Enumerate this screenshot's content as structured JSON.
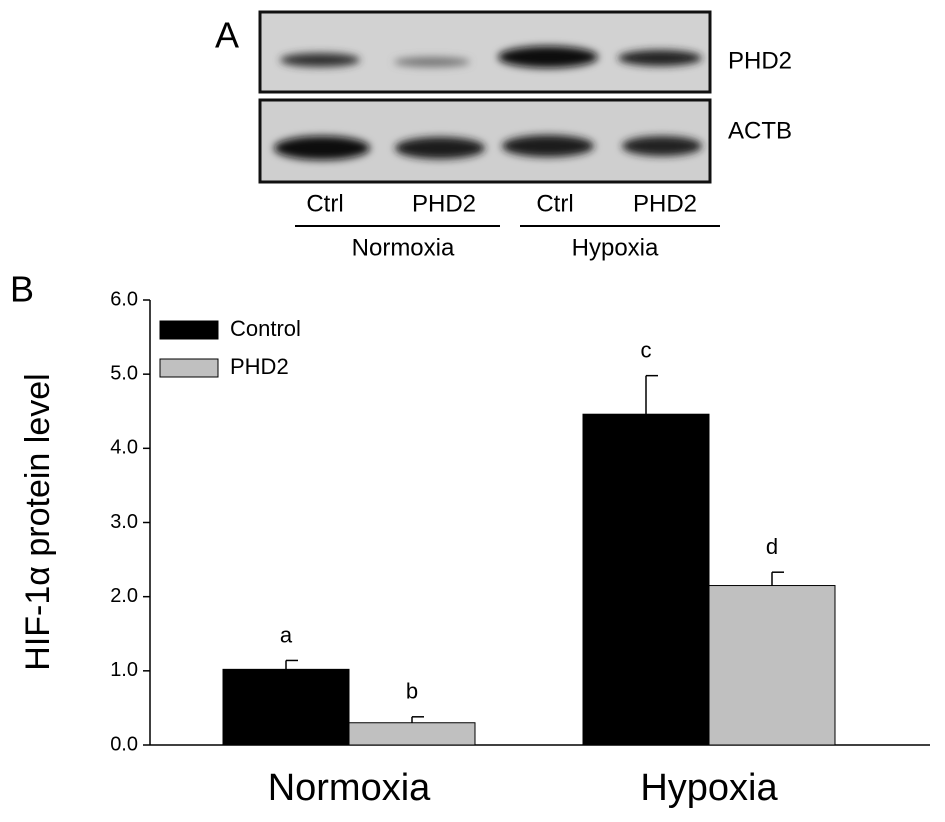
{
  "panel_a": {
    "label": "A",
    "rows": [
      "PHD2",
      "ACTB"
    ],
    "lanes": [
      "Ctrl",
      "PHD2",
      "Ctrl",
      "PHD2"
    ],
    "groups": [
      "Normoxia",
      "Hypoxia"
    ]
  },
  "panel_b_label": "B",
  "chart_data": {
    "type": "bar",
    "ylabel": "HIF-1α protein level",
    "categories": [
      "Normoxia",
      "Hypoxia"
    ],
    "series": [
      {
        "name": "Control",
        "color": "#000000",
        "values": [
          1.02,
          4.46
        ],
        "errors": [
          0.12,
          0.52
        ],
        "annotations": [
          "a",
          "c"
        ]
      },
      {
        "name": "PHD2",
        "color": "#c0c0c0",
        "values": [
          0.3,
          2.15
        ],
        "errors": [
          0.08,
          0.18
        ],
        "annotations": [
          "b",
          "d"
        ]
      }
    ],
    "ylim": [
      0,
      6
    ],
    "yticks": [
      {
        "value": 0,
        "label": "0.0"
      },
      {
        "value": 1,
        "label": "1.0"
      },
      {
        "value": 2,
        "label": "2.0"
      },
      {
        "value": 3,
        "label": "3.0"
      },
      {
        "value": 4,
        "label": "4.0"
      },
      {
        "value": 5,
        "label": "5.0"
      },
      {
        "value": 6,
        "label": "6.0"
      }
    ],
    "grid": false,
    "legend": "upper left"
  }
}
